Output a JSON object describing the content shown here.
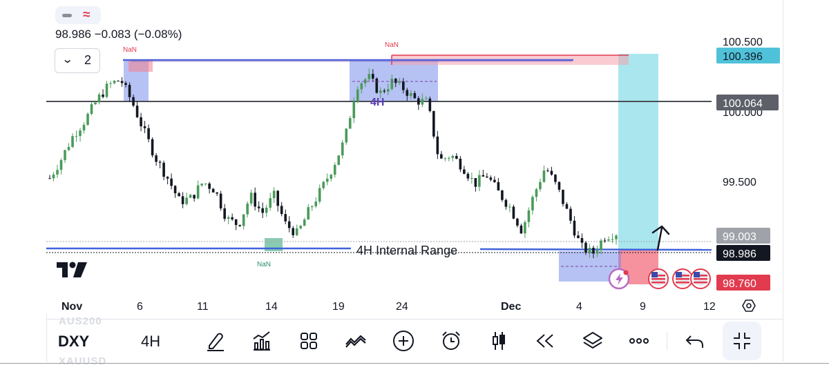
{
  "header": {
    "price_line": "98.986 −0.083 (−0.08%)",
    "collapse_count": "2"
  },
  "chart_data": {
    "type": "candlestick",
    "symbol": "DXY",
    "interval": "4H",
    "ylim": [
      98.55,
      100.62
    ],
    "x_labels": [
      "Nov",
      "6",
      "11",
      "14",
      "19",
      "24",
      "Dec",
      "4",
      "9",
      "12"
    ],
    "y_ticks": [
      "100.500",
      "100.000",
      "99.500"
    ],
    "price_badges": [
      {
        "label": "100.396",
        "value": 100.396,
        "color": "#4fc2d9"
      },
      {
        "label": "100.064",
        "value": 100.064,
        "color": "#5d6068"
      },
      {
        "label": "99.003",
        "value": 99.003,
        "color": "#9fa2a8"
      },
      {
        "label": "98.986",
        "value": 98.986,
        "color": "#131722"
      },
      {
        "label": "98.760",
        "value": 98.76,
        "color": "#e23a4e"
      }
    ],
    "annotations": {
      "range_label": "4H Internal Range",
      "box_label": "4H",
      "nan_label": "NaN"
    },
    "close_path": [
      99.45,
      99.62,
      99.82,
      99.95,
      100.12,
      100.25,
      100.3,
      100.1,
      99.85,
      99.62,
      99.45,
      99.25,
      99.28,
      99.42,
      99.35,
      99.1,
      99.05,
      99.3,
      99.15,
      99.3,
      99.05,
      98.97,
      99.18,
      99.35,
      99.55,
      99.78,
      100.25,
      100.32,
      100.18,
      100.28,
      100.22,
      100.12,
      100.1,
      99.6,
      99.65,
      99.55,
      99.4,
      99.48,
      99.33,
      99.2,
      99.0,
      99.3,
      99.55,
      99.37,
      99.12,
      98.86,
      98.8,
      98.95,
      98.98
    ]
  },
  "toolbar": {
    "symbol": "DXY",
    "interval": "4H",
    "ghost_top": "AUS200",
    "ghost_bottom": "XAUUSD"
  }
}
